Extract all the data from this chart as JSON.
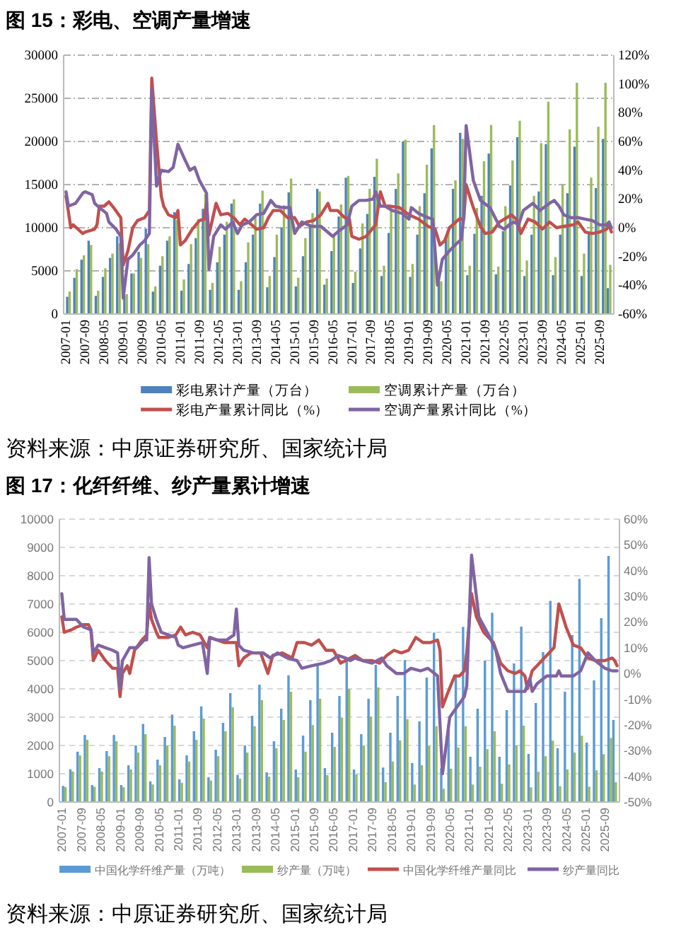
{
  "chart_data": [
    {
      "type": "bar",
      "title": "图 15：彩电、空调产量增速",
      "annotations": [
        "资料来源：中原证券研究所、国家统计局"
      ],
      "grid": "y",
      "legend": "bottom",
      "xlim": [
        "2006-12",
        "2026-03"
      ],
      "xticks": [
        "2007-01",
        "2007-09",
        "2008-05",
        "2009-01",
        "2009-09",
        "2010-05",
        "2011-01",
        "2011-09",
        "2012-05",
        "2013-01",
        "2013-09",
        "2014-05",
        "2015-01",
        "2015-09",
        "2016-05",
        "2017-01",
        "2017-09",
        "2018-05",
        "2019-01",
        "2019-09",
        "2020-05",
        "2021-01",
        "2021-09",
        "2022-05",
        "2023-01",
        "2023-09",
        "2024-05",
        "2025-01",
        "2025-09"
      ],
      "ylim": [
        0,
        30000
      ],
      "yticks": [
        0,
        5000,
        10000,
        15000,
        20000,
        25000,
        30000
      ],
      "y2lim": [
        -60,
        120
      ],
      "y2ticks": [
        {
          "value": -60,
          "label": "-60%"
        },
        {
          "value": -40,
          "label": "-40%"
        },
        {
          "value": -20,
          "label": "-20%"
        },
        {
          "value": 0,
          "label": "0%"
        },
        {
          "value": 20,
          "label": "20%"
        },
        {
          "value": 40,
          "label": "40%"
        },
        {
          "value": 60,
          "label": "60%"
        },
        {
          "value": 80,
          "label": "80%"
        },
        {
          "value": 100,
          "label": "100%"
        },
        {
          "value": 120,
          "label": "120%"
        }
      ],
      "x": [
        "2007-03",
        "2007-06",
        "2007-09",
        "2007-12",
        "2008-03",
        "2008-06",
        "2008-09",
        "2008-12",
        "2009-03",
        "2009-06",
        "2009-09",
        "2009-12",
        "2010-03",
        "2010-06",
        "2010-09",
        "2010-12",
        "2011-03",
        "2011-06",
        "2011-09",
        "2011-12",
        "2012-03",
        "2012-06",
        "2012-09",
        "2012-12",
        "2013-03",
        "2013-06",
        "2013-09",
        "2013-12",
        "2014-03",
        "2014-06",
        "2014-09",
        "2014-12",
        "2015-03",
        "2015-06",
        "2015-09",
        "2015-12",
        "2016-03",
        "2016-06",
        "2016-09",
        "2016-12",
        "2017-03",
        "2017-06",
        "2017-09",
        "2017-12",
        "2018-03",
        "2018-06",
        "2018-09",
        "2018-12",
        "2019-03",
        "2019-06",
        "2019-09",
        "2019-12",
        "2020-03",
        "2020-06",
        "2020-09",
        "2020-12",
        "2021-03",
        "2021-06",
        "2021-09",
        "2021-12",
        "2022-03",
        "2022-06",
        "2022-09",
        "2022-12",
        "2023-03",
        "2023-06",
        "2023-09",
        "2023-12",
        "2024-03",
        "2024-06",
        "2024-09",
        "2024-12",
        "2025-03",
        "2025-06",
        "2025-09",
        "2025-12",
        "2026-02"
      ],
      "series": [
        {
          "name": "彩电累计产量（万台）",
          "color": "#4f81bd",
          "values": [
            2000,
            4200,
            6300,
            8500,
            2100,
            4300,
            6500,
            9000,
            2200,
            4700,
            7200,
            9900,
            2600,
            5600,
            8500,
            11800,
            2700,
            5800,
            8800,
            12200,
            2800,
            6000,
            9200,
            12800,
            2800,
            6000,
            9200,
            12800,
            3100,
            6600,
            10000,
            14100,
            3200,
            6700,
            10400,
            14500,
            3400,
            7300,
            11300,
            15800,
            3600,
            7600,
            11600,
            15900,
            4400,
            9400,
            14500,
            20000,
            4300,
            9200,
            14000,
            19200,
            3700,
            8600,
            14500,
            21000,
            4500,
            9300,
            13700,
            18600,
            4600,
            9600,
            14900,
            20500,
            4400,
            9200,
            14200,
            19700,
            4500,
            9200,
            14000,
            19400,
            4400,
            9300,
            14600,
            20300,
            3000
          ]
        },
        {
          "name": "空调累计产量（万台）",
          "color": "#9bbb59",
          "values": [
            2600,
            5200,
            6800,
            8000,
            2700,
            5300,
            7000,
            8200,
            2300,
            4700,
            6500,
            8100,
            3200,
            6700,
            9000,
            10900,
            4000,
            8100,
            11000,
            13900,
            3600,
            7800,
            10700,
            13300,
            3800,
            8300,
            11500,
            14300,
            4400,
            9200,
            12600,
            15700,
            4200,
            8800,
            11700,
            14200,
            4100,
            9000,
            12700,
            16000,
            4900,
            10500,
            14500,
            18000,
            5600,
            12000,
            16300,
            20200,
            5800,
            12500,
            17300,
            21900,
            3800,
            9500,
            15500,
            20300,
            5600,
            12300,
            17700,
            21900,
            5500,
            12500,
            17800,
            22400,
            6200,
            13700,
            19800,
            24600,
            6600,
            15000,
            21400,
            26800,
            7000,
            15800,
            21700,
            26800,
            5700
          ]
        },
        {
          "name": "彩电产量累计同比（%）",
          "type": "line",
          "axis": "y2",
          "color": "#c0504d",
          "x": [
            "2007-01",
            "2007-03",
            "2007-04",
            "2007-08",
            "2007-09",
            "2008-01",
            "2008-02",
            "2008-03",
            "2008-05",
            "2008-07",
            "2008-09",
            "2008-12",
            "2009-01",
            "2009-03",
            "2009-05",
            "2009-07",
            "2009-10",
            "2009-12",
            "2010-01",
            "2010-03",
            "2010-05",
            "2010-06",
            "2010-08",
            "2010-11",
            "2010-12",
            "2011-01",
            "2011-03",
            "2011-06",
            "2011-09",
            "2011-11",
            "2011-12",
            "2012-01",
            "2012-04",
            "2012-06",
            "2012-09",
            "2012-12",
            "2013-02",
            "2013-04",
            "2013-07",
            "2013-09",
            "2013-12",
            "2014-02",
            "2014-04",
            "2014-07",
            "2014-10",
            "2015-01",
            "2015-03",
            "2015-06",
            "2015-09",
            "2015-12",
            "2016-03",
            "2016-04",
            "2016-07",
            "2016-10",
            "2016-12",
            "2017-01",
            "2017-04",
            "2017-07",
            "2017-11",
            "2018-01",
            "2018-03",
            "2018-05",
            "2018-09",
            "2019-01",
            "2019-05",
            "2019-09",
            "2019-12",
            "2020-02",
            "2020-04",
            "2020-06",
            "2020-10",
            "2020-12",
            "2021-01",
            "2021-04",
            "2021-07",
            "2021-09",
            "2021-12",
            "2022-03",
            "2022-06",
            "2022-08",
            "2022-10",
            "2022-12",
            "2023-03",
            "2023-06",
            "2023-09",
            "2023-12",
            "2024-03",
            "2024-06",
            "2024-10",
            "2024-12",
            "2025-03",
            "2025-06",
            "2025-09",
            "2025-12",
            "2026-01",
            "2026-02"
          ],
          "values": [
            22,
            0,
            2,
            -4,
            -3,
            -1,
            2,
            15,
            15,
            18,
            14,
            7,
            -26,
            -16,
            0,
            5,
            7,
            12,
            104,
            60,
            22,
            15,
            9,
            7,
            12,
            -12,
            -9,
            -1,
            5,
            6,
            17,
            -5,
            17,
            9,
            10,
            6,
            2,
            6,
            2,
            -1,
            0,
            7,
            12,
            12,
            7,
            7,
            1,
            4,
            5,
            9,
            17,
            12,
            12,
            7,
            6,
            -6,
            -8,
            -6,
            2,
            25,
            15,
            15,
            14,
            9,
            6,
            1,
            -1,
            -12,
            -9,
            0,
            6,
            6,
            30,
            14,
            1,
            -4,
            -3,
            4,
            7,
            9,
            6,
            -4,
            6,
            4,
            -1,
            4,
            0,
            1,
            2,
            4,
            -3,
            -4,
            -3,
            -1,
            2,
            -3
          ]
        },
        {
          "name": "空调产量累计同比（%）",
          "type": "line",
          "axis": "y2",
          "color": "#8064a2",
          "x": [
            "2007-01",
            "2007-02",
            "2007-05",
            "2007-08",
            "2007-09",
            "2007-12",
            "2008-01",
            "2008-03",
            "2008-06",
            "2008-07",
            "2008-10",
            "2008-12",
            "2009-01",
            "2009-03",
            "2009-05",
            "2009-08",
            "2009-10",
            "2009-12",
            "2010-01",
            "2010-03",
            "2010-05",
            "2010-08",
            "2010-10",
            "2010-12",
            "2011-03",
            "2011-05",
            "2011-07",
            "2011-09",
            "2011-12",
            "2012-01",
            "2012-03",
            "2012-06",
            "2012-08",
            "2012-11",
            "2013-01",
            "2013-03",
            "2013-06",
            "2013-09",
            "2013-12",
            "2014-03",
            "2014-05",
            "2014-08",
            "2014-11",
            "2015-01",
            "2015-04",
            "2015-08",
            "2015-12",
            "2016-05",
            "2016-07",
            "2016-11",
            "2017-01",
            "2017-04",
            "2017-07",
            "2017-10",
            "2017-11",
            "2018-01",
            "2018-03",
            "2018-06",
            "2018-10",
            "2019-01",
            "2019-02",
            "2019-05",
            "2019-09",
            "2019-11",
            "2020-01",
            "2020-03",
            "2020-06",
            "2020-09",
            "2020-11",
            "2020-12",
            "2021-01",
            "2021-04",
            "2021-07",
            "2021-11",
            "2022-03",
            "2022-05",
            "2022-07",
            "2022-09",
            "2022-11",
            "2023-01",
            "2023-05",
            "2023-08",
            "2023-12",
            "2024-02",
            "2024-04",
            "2024-06",
            "2024-09",
            "2024-12",
            "2025-03",
            "2025-06",
            "2025-09",
            "2025-12",
            "2026-01",
            "2026-02"
          ],
          "values": [
            25,
            15,
            17,
            24,
            25,
            23,
            17,
            14,
            10,
            4,
            -1,
            -6,
            -49,
            -22,
            -19,
            -12,
            -9,
            -4,
            96,
            29,
            40,
            39,
            42,
            58,
            47,
            40,
            42,
            33,
            24,
            -29,
            -6,
            2,
            -1,
            4,
            -4,
            2,
            4,
            9,
            10,
            19,
            15,
            14,
            14,
            -4,
            4,
            1,
            1,
            -6,
            -3,
            2,
            15,
            19,
            19,
            20,
            25,
            15,
            15,
            12,
            10,
            6,
            14,
            10,
            7,
            6,
            -40,
            -22,
            -16,
            -11,
            -8,
            7,
            71,
            33,
            19,
            14,
            1,
            -1,
            2,
            4,
            2,
            12,
            17,
            12,
            17,
            19,
            15,
            9,
            7,
            7,
            6,
            5,
            2,
            2,
            4,
            0
          ]
        }
      ]
    },
    {
      "type": "bar",
      "title": "图 17：化纤纤维、纱产量累计增速",
      "annotations": [
        "资料来源：中原证券研究所、国家统计局"
      ],
      "grid": "y",
      "legend": "bottom",
      "xlim": [
        "2006-12",
        "2026-03"
      ],
      "xticks": [
        "2007-01",
        "2007-09",
        "2008-05",
        "2009-01",
        "2009-09",
        "2010-05",
        "2011-01",
        "2011-09",
        "2012-05",
        "2013-01",
        "2013-09",
        "2014-05",
        "2015-01",
        "2015-09",
        "2016-05",
        "2017-01",
        "2017-09",
        "2018-05",
        "2019-01",
        "2019-09",
        "2020-05",
        "2021-01",
        "2021-09",
        "2022-05",
        "2023-01",
        "2023-09",
        "2024-05",
        "2025-01",
        "2025-09"
      ],
      "ylim": [
        0,
        10000
      ],
      "yticks": [
        0,
        1000,
        2000,
        3000,
        4000,
        5000,
        6000,
        7000,
        8000,
        9000,
        10000
      ],
      "y2lim": [
        -50,
        60
      ],
      "y2ticks": [
        {
          "value": -50,
          "label": "-50%"
        },
        {
          "value": -40,
          "label": "-40%"
        },
        {
          "value": -30,
          "label": "-30%"
        },
        {
          "value": -20,
          "label": "-20%"
        },
        {
          "value": -10,
          "label": "-10%"
        },
        {
          "value": 0,
          "label": "0%"
        },
        {
          "value": 10,
          "label": "10%"
        },
        {
          "value": 20,
          "label": "20%"
        },
        {
          "value": 30,
          "label": "30%"
        },
        {
          "value": 40,
          "label": "40%"
        },
        {
          "value": 50,
          "label": "50%"
        },
        {
          "value": 60,
          "label": "60%"
        }
      ],
      "x": [
        "2007-03",
        "2007-06",
        "2007-09",
        "2007-12",
        "2008-03",
        "2008-06",
        "2008-09",
        "2008-12",
        "2009-03",
        "2009-06",
        "2009-09",
        "2009-12",
        "2010-03",
        "2010-06",
        "2010-09",
        "2010-12",
        "2011-03",
        "2011-06",
        "2011-09",
        "2011-12",
        "2012-03",
        "2012-06",
        "2012-09",
        "2012-12",
        "2013-03",
        "2013-06",
        "2013-09",
        "2013-12",
        "2014-03",
        "2014-06",
        "2014-09",
        "2014-12",
        "2015-03",
        "2015-06",
        "2015-09",
        "2015-12",
        "2016-03",
        "2016-06",
        "2016-09",
        "2016-12",
        "2017-03",
        "2017-06",
        "2017-09",
        "2017-12",
        "2018-03",
        "2018-06",
        "2018-09",
        "2018-12",
        "2019-03",
        "2019-06",
        "2019-09",
        "2019-12",
        "2020-03",
        "2020-06",
        "2020-09",
        "2020-12",
        "2021-03",
        "2021-06",
        "2021-09",
        "2021-12",
        "2022-03",
        "2022-06",
        "2022-09",
        "2022-12",
        "2023-03",
        "2023-06",
        "2023-09",
        "2023-12",
        "2024-03",
        "2024-06",
        "2024-09",
        "2024-12",
        "2025-03",
        "2025-06",
        "2025-09",
        "2025-12",
        "2026-02"
      ],
      "series": [
        {
          "name": "中国化学纤维产量（万吨）",
          "color": "#5b9bd5",
          "values": [
            570,
            1160,
            1780,
            2370,
            600,
            1200,
            1800,
            2370,
            600,
            1300,
            2000,
            2760,
            730,
            1500,
            2300,
            3090,
            800,
            1650,
            2500,
            3380,
            880,
            1850,
            2800,
            3850,
            960,
            2000,
            3050,
            4150,
            1050,
            2150,
            3300,
            4480,
            1150,
            2350,
            3600,
            4850,
            1200,
            2450,
            3750,
            5050,
            1150,
            2400,
            3650,
            4850,
            1220,
            2450,
            3750,
            5020,
            1380,
            2850,
            4400,
            5990,
            1200,
            2750,
            4400,
            6190,
            1600,
            3300,
            5000,
            6690,
            1600,
            3250,
            4900,
            6200,
            1700,
            3500,
            5300,
            7110,
            1900,
            3900,
            5900,
            7890,
            2100,
            4300,
            6500,
            8700,
            2900
          ]
        },
        {
          "name": "纱产量（万吨）",
          "color": "#9bbb59",
          "values": [
            530,
            1080,
            1650,
            2200,
            540,
            1080,
            1620,
            2150,
            520,
            1150,
            1750,
            2400,
            620,
            1300,
            2000,
            2700,
            680,
            1430,
            2200,
            2950,
            760,
            1620,
            2500,
            3350,
            830,
            1750,
            2680,
            3600,
            900,
            1900,
            2900,
            3900,
            880,
            1780,
            2720,
            3650,
            950,
            1950,
            2980,
            4000,
            980,
            2000,
            3020,
            4050,
            700,
            1430,
            2180,
            2930,
            620,
            1300,
            1980,
            2680,
            470,
            1180,
            1930,
            2680,
            620,
            1250,
            1870,
            2500,
            650,
            1330,
            2000,
            2700,
            520,
            1070,
            1620,
            2170,
            560,
            1150,
            1750,
            2340,
            540,
            1120,
            1690,
            2260,
            700
          ]
        },
        {
          "name": "中国化学纤维产量同比",
          "type": "line",
          "axis": "y2",
          "color": "#c0504d",
          "x": [
            "2007-01",
            "2007-02",
            "2007-05",
            "2007-07",
            "2007-10",
            "2007-12",
            "2008-01",
            "2008-02",
            "2008-04",
            "2008-07",
            "2008-10",
            "2008-12",
            "2009-01",
            "2009-02",
            "2009-04",
            "2009-05",
            "2009-07",
            "2009-10",
            "2009-12",
            "2010-01",
            "2010-02",
            "2010-04",
            "2010-05",
            "2010-09",
            "2010-12",
            "2011-02",
            "2011-04",
            "2011-07",
            "2011-10",
            "2012-01",
            "2012-02",
            "2012-05",
            "2012-08",
            "2012-11",
            "2013-01",
            "2013-02",
            "2013-04",
            "2013-07",
            "2013-09",
            "2013-11",
            "2014-02",
            "2014-04",
            "2014-08",
            "2014-12",
            "2015-02",
            "2015-05",
            "2015-08",
            "2015-11",
            "2016-02",
            "2016-05",
            "2016-08",
            "2016-10",
            "2017-02",
            "2017-05",
            "2017-09",
            "2017-12",
            "2018-03",
            "2018-06",
            "2018-09",
            "2018-12",
            "2019-03",
            "2019-06",
            "2019-09",
            "2019-12",
            "2020-01",
            "2020-02",
            "2020-04",
            "2020-07",
            "2020-09",
            "2020-11",
            "2020-12",
            "2021-02",
            "2021-04",
            "2021-07",
            "2021-11",
            "2022-02",
            "2022-05",
            "2022-08",
            "2022-10",
            "2022-12",
            "2023-01",
            "2023-03",
            "2023-05",
            "2023-09",
            "2023-12",
            "2024-02",
            "2024-05",
            "2024-08",
            "2024-11",
            "2025-02",
            "2025-05",
            "2025-09",
            "2025-12",
            "2026-01",
            "2026-02"
          ],
          "values": [
            22,
            16,
            17,
            18,
            19,
            19,
            17,
            5,
            9,
            5,
            2,
            2,
            -9,
            0,
            3,
            0,
            9,
            13,
            15,
            27,
            21,
            16,
            14,
            14,
            15,
            18,
            15,
            16,
            15,
            10,
            14,
            13,
            12,
            12,
            12,
            3,
            6,
            8,
            8,
            8,
            0,
            7,
            8,
            6,
            12,
            12,
            11,
            13,
            9,
            9,
            4,
            5,
            7,
            5,
            5,
            4,
            7,
            9,
            8,
            9,
            14,
            12,
            12,
            13,
            9,
            -13,
            -8,
            -1,
            -1,
            1,
            8,
            31,
            22,
            16,
            12,
            4,
            1,
            0,
            1,
            -1,
            -6,
            1,
            3,
            7,
            10,
            27,
            18,
            11,
            10,
            6,
            5,
            5,
            6,
            5,
            3
          ]
        },
        {
          "name": "纱产量同比",
          "type": "line",
          "axis": "y2",
          "color": "#8064a2",
          "x": [
            "2007-01",
            "2007-02",
            "2007-04",
            "2007-07",
            "2007-10",
            "2008-01",
            "2008-02",
            "2008-04",
            "2008-07",
            "2008-10",
            "2008-12",
            "2009-01",
            "2009-02",
            "2009-05",
            "2009-08",
            "2009-11",
            "2009-12",
            "2010-01",
            "2010-02",
            "2010-04",
            "2010-06",
            "2010-09",
            "2010-12",
            "2011-01",
            "2011-03",
            "2011-07",
            "2011-11",
            "2012-01",
            "2012-02",
            "2012-05",
            "2012-09",
            "2012-12",
            "2013-01",
            "2013-02",
            "2013-04",
            "2013-08",
            "2013-12",
            "2014-03",
            "2014-06",
            "2014-10",
            "2015-02",
            "2015-04",
            "2015-08",
            "2016-01",
            "2016-04",
            "2016-07",
            "2016-10",
            "2016-12",
            "2017-02",
            "2017-05",
            "2017-09",
            "2018-01",
            "2018-03",
            "2018-07",
            "2018-10",
            "2019-01",
            "2019-05",
            "2019-08",
            "2019-12",
            "2020-02",
            "2020-05",
            "2020-08",
            "2020-11",
            "2020-12",
            "2021-02",
            "2021-05",
            "2021-09",
            "2021-12",
            "2022-02",
            "2022-05",
            "2022-08",
            "2022-12",
            "2023-02",
            "2023-03",
            "2023-05",
            "2023-09",
            "2024-01",
            "2024-02",
            "2024-03",
            "2024-08",
            "2024-11",
            "2025-02",
            "2025-05",
            "2025-09",
            "2025-12",
            "2026-02"
          ],
          "values": [
            31,
            21,
            21,
            21,
            18,
            17,
            8,
            11,
            10,
            9,
            8,
            -6,
            5,
            10,
            10,
            13,
            13,
            45,
            27,
            21,
            16,
            15,
            14,
            11,
            10,
            11,
            12,
            0,
            14,
            13,
            13,
            15,
            25,
            11,
            9,
            8,
            8,
            6,
            8,
            6,
            5,
            2,
            3,
            4,
            5,
            7,
            6,
            5,
            6,
            5,
            4,
            6,
            3,
            0,
            0,
            2,
            1,
            2,
            -1,
            -39,
            -17,
            -13,
            -9,
            -5,
            46,
            22,
            15,
            9,
            0,
            -7,
            -7,
            -7,
            -2,
            -7,
            -4,
            -1,
            -1,
            1,
            -1,
            -1,
            1,
            8,
            5,
            2,
            1,
            1
          ]
        }
      ]
    }
  ]
}
